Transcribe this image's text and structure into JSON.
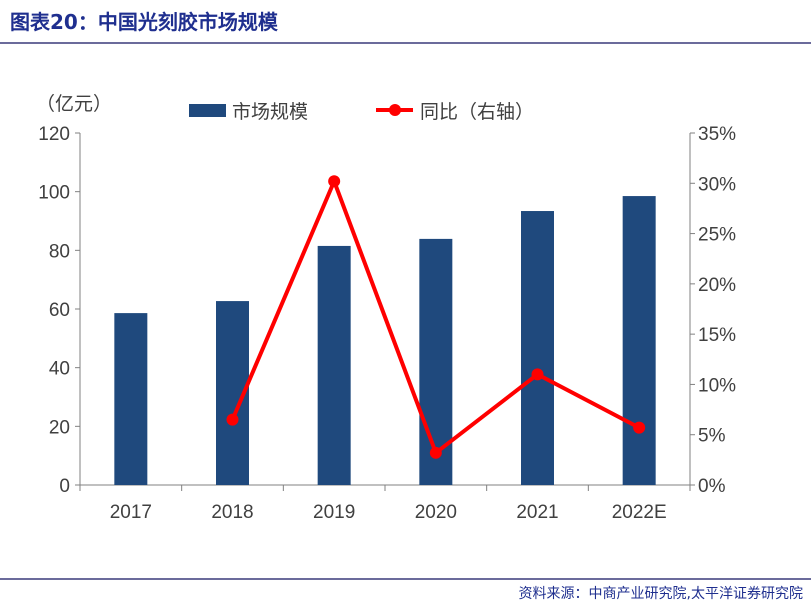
{
  "title": "图表20：中国光刻胶市场规模",
  "source": "资料来源：中商产业研究院,太平洋证券研究院",
  "colors": {
    "bar": "#1f497d",
    "line": "#ff0000",
    "title": "#1f2f8f"
  },
  "chart_data": {
    "type": "bar+line",
    "categories": [
      "2017",
      "2018",
      "2019",
      "2020",
      "2021",
      "2022E"
    ],
    "y_unit_label": "（亿元）",
    "ylim": [
      0,
      120
    ],
    "yticks": [
      0,
      20,
      40,
      60,
      80,
      100,
      120
    ],
    "y2lim": [
      0,
      35
    ],
    "y2ticks": [
      "0%",
      "5%",
      "10%",
      "15%",
      "20%",
      "25%",
      "30%",
      "35%"
    ],
    "grid": false,
    "legend_position": "top",
    "series": [
      {
        "name": "市场规模",
        "type": "bar",
        "axis": "left",
        "values": [
          58.6,
          62.7,
          81.5,
          83.9,
          93.4,
          98.5
        ]
      },
      {
        "name": "同比（右轴）",
        "type": "line",
        "axis": "right",
        "values": [
          null,
          6.5,
          30.2,
          3.2,
          11.0,
          5.7
        ]
      }
    ]
  }
}
